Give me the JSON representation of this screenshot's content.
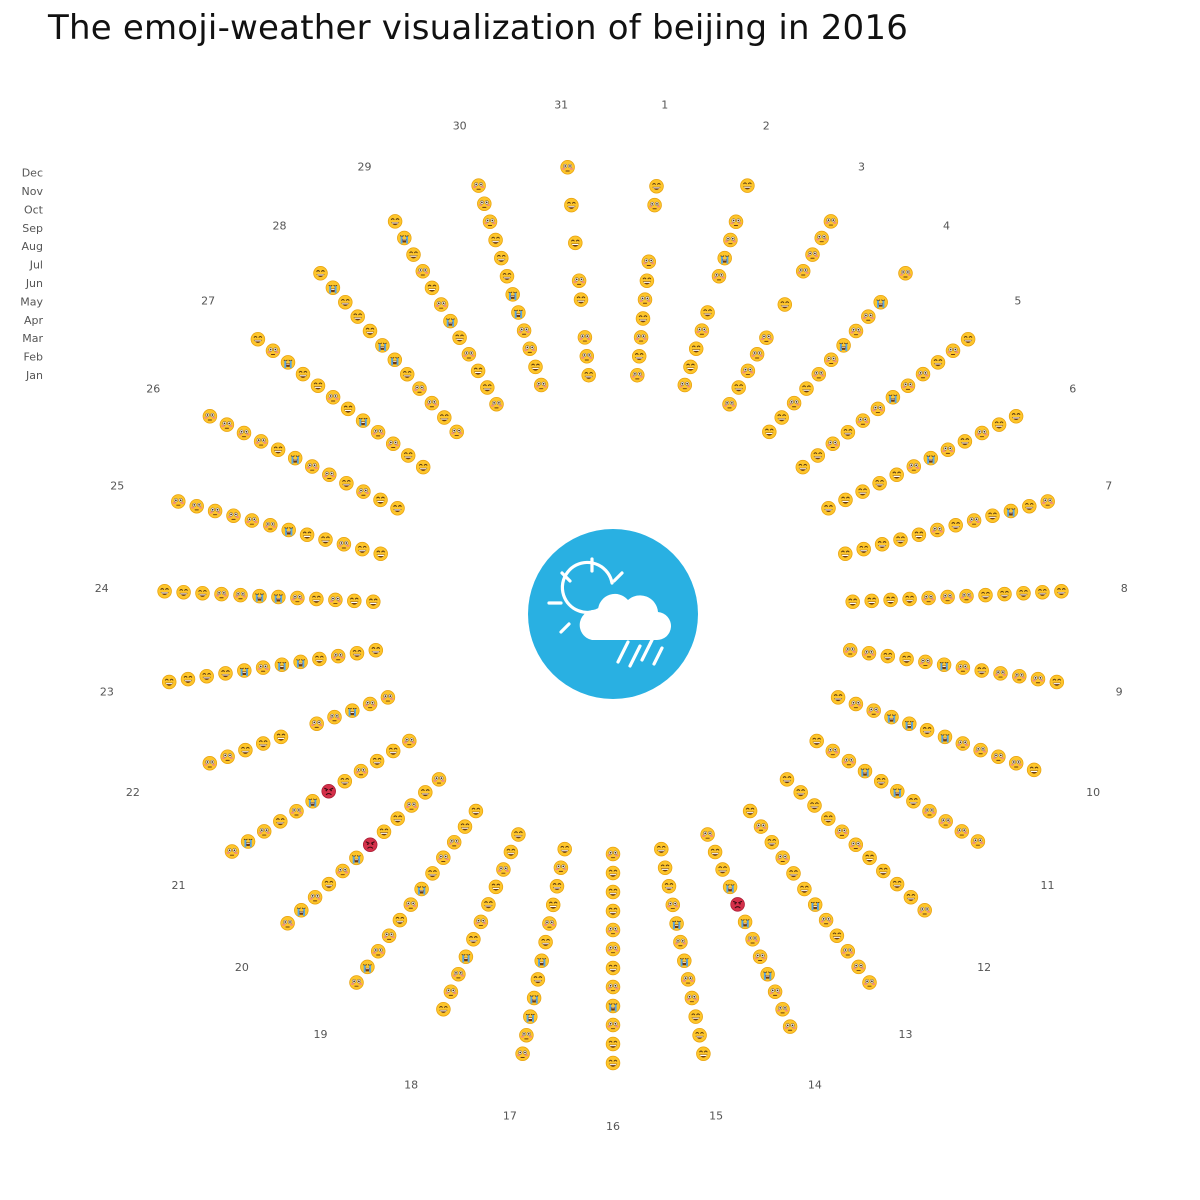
{
  "chart_data": {
    "type": "radial-emoji-calendar",
    "title": "The emoji-weather visualization of beijing in 2016",
    "days": [
      "1",
      "2",
      "3",
      "4",
      "5",
      "6",
      "7",
      "8",
      "9",
      "10",
      "11",
      "12",
      "13",
      "14",
      "15",
      "16",
      "17",
      "18",
      "19",
      "20",
      "21",
      "22",
      "23",
      "24",
      "25",
      "26",
      "27",
      "28",
      "29",
      "30",
      "31"
    ],
    "months": [
      "Jan",
      "Feb",
      "Mar",
      "Apr",
      "May",
      "Jun",
      "Jul",
      "Aug",
      "Sep",
      "Oct",
      "Nov",
      "Dec"
    ],
    "legend_placement": "top-left",
    "center_icon": "sun-cloud-rain-icon",
    "colors": {
      "emoji_face": "#fdc52b",
      "emoji_outline": "#e8a10c",
      "angry_face": "#d4304a",
      "tear": "#5aa7e0",
      "center_circle": "#29b0e2"
    },
    "emoji_legend": {
      "g": "grinning",
      "f": "flushed",
      "c": "crying",
      "a": "angry",
      "x": "none"
    },
    "weather": [
      [
        "f",
        "g",
        "f",
        "g",
        "f",
        "g",
        "f",
        "x",
        "x",
        "f",
        "g",
        "x"
      ],
      [
        "f",
        "g",
        "g",
        "f",
        "g",
        "x",
        "f",
        "c",
        "f",
        "f",
        "x",
        "g"
      ],
      [
        "f",
        "g",
        "f",
        "f",
        "f",
        "x",
        "g",
        "x",
        "f",
        "f",
        "f",
        "f"
      ],
      [
        "g",
        "g",
        "f",
        "g",
        "f",
        "f",
        "c",
        "f",
        "f",
        "c",
        "x",
        "f"
      ],
      [
        "g",
        "g",
        "f",
        "g",
        "f",
        "f",
        "c",
        "f",
        "f",
        "g",
        "f",
        "g"
      ],
      [
        "g",
        "g",
        "g",
        "g",
        "g",
        "f",
        "c",
        "f",
        "g",
        "f",
        "g",
        "g"
      ],
      [
        "g",
        "g",
        "g",
        "g",
        "g",
        "f",
        "g",
        "f",
        "g",
        "c",
        "g",
        "f"
      ],
      [
        "g",
        "g",
        "g",
        "g",
        "f",
        "f",
        "f",
        "g",
        "g",
        "g",
        "g",
        "g"
      ],
      [
        "f",
        "f",
        "g",
        "g",
        "f",
        "c",
        "f",
        "g",
        "f",
        "f",
        "f",
        "g"
      ],
      [
        "g",
        "f",
        "f",
        "c",
        "c",
        "g",
        "c",
        "f",
        "f",
        "f",
        "f",
        "g"
      ],
      [
        "g",
        "f",
        "f",
        "c",
        "g",
        "c",
        "g",
        "f",
        "f",
        "f",
        "f",
        "x"
      ],
      [
        "g",
        "g",
        "g",
        "g",
        "f",
        "f",
        "g",
        "g",
        "g",
        "g",
        "f",
        "x"
      ],
      [
        "g",
        "f",
        "g",
        "f",
        "g",
        "g",
        "c",
        "f",
        "g",
        "f",
        "f",
        "f"
      ],
      [
        "f",
        "g",
        "g",
        "c",
        "a",
        "c",
        "f",
        "f",
        "c",
        "f",
        "f",
        "f"
      ],
      [
        "g",
        "g",
        "g",
        "f",
        "c",
        "f",
        "c",
        "f",
        "f",
        "g",
        "g",
        "g"
      ],
      [
        "f",
        "g",
        "g",
        "g",
        "f",
        "f",
        "g",
        "f",
        "c",
        "f",
        "g",
        "g"
      ],
      [
        "g",
        "f",
        "g",
        "g",
        "f",
        "g",
        "c",
        "g",
        "c",
        "c",
        "f",
        "f"
      ],
      [
        "g",
        "g",
        "f",
        "g",
        "g",
        "f",
        "g",
        "c",
        "f",
        "f",
        "g",
        "x"
      ],
      [
        "g",
        "g",
        "f",
        "f",
        "g",
        "c",
        "f",
        "g",
        "f",
        "f",
        "c",
        "f"
      ],
      [
        "f",
        "g",
        "f",
        "g",
        "g",
        "a",
        "c",
        "f",
        "g",
        "f",
        "c",
        "f"
      ],
      [
        "f",
        "g",
        "g",
        "f",
        "g",
        "a",
        "c",
        "f",
        "g",
        "f",
        "c",
        "f"
      ],
      [
        "f",
        "f",
        "c",
        "f",
        "f",
        "x",
        "g",
        "g",
        "g",
        "f",
        "f",
        "x"
      ],
      [
        "g",
        "g",
        "f",
        "g",
        "c",
        "c",
        "f",
        "c",
        "g",
        "g",
        "g",
        "g"
      ],
      [
        "g",
        "g",
        "f",
        "g",
        "f",
        "c",
        "c",
        "f",
        "f",
        "g",
        "g",
        "g"
      ],
      [
        "g",
        "g",
        "f",
        "g",
        "g",
        "c",
        "f",
        "f",
        "f",
        "f",
        "f",
        "f"
      ],
      [
        "g",
        "g",
        "f",
        "g",
        "f",
        "f",
        "c",
        "g",
        "f",
        "f",
        "f",
        "f"
      ],
      [
        "g",
        "g",
        "f",
        "f",
        "c",
        "g",
        "f",
        "g",
        "g",
        "c",
        "f",
        "g"
      ],
      [
        "f",
        "g",
        "f",
        "f",
        "g",
        "c",
        "c",
        "g",
        "g",
        "g",
        "c",
        "g"
      ],
      [
        "f",
        "g",
        "g",
        "f",
        "g",
        "c",
        "f",
        "g",
        "f",
        "g",
        "c",
        "g"
      ],
      [
        "f",
        "g",
        "f",
        "f",
        "c",
        "c",
        "g",
        "g",
        "g",
        "f",
        "f",
        "f"
      ],
      [
        "g",
        "f",
        "f",
        "x",
        "g",
        "f",
        "x",
        "g",
        "x",
        "g",
        "x",
        "f"
      ]
    ]
  }
}
